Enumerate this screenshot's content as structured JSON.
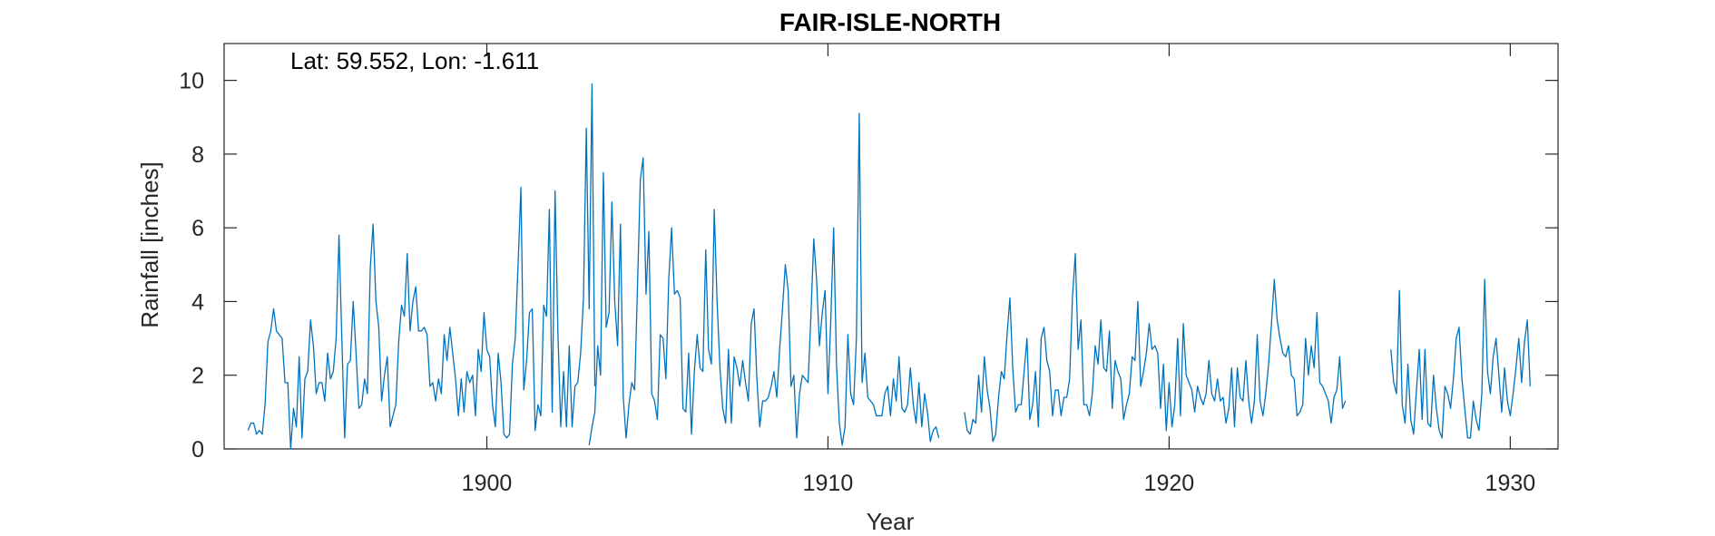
{
  "chart_data": {
    "type": "line",
    "title": "FAIR-ISLE-NORTH",
    "annotation": "Lat: 59.552, Lon: -1.611",
    "xlabel": "Year",
    "ylabel": "Rainfall [inches]",
    "xlim": [
      1892.3,
      1931.4
    ],
    "ylim": [
      0,
      11
    ],
    "xticks": [
      1900,
      1910,
      1920,
      1930
    ],
    "yticks": [
      0,
      2,
      4,
      6,
      8,
      10
    ],
    "grid": false,
    "line_color": "#0072BD",
    "series": [
      {
        "start_year": 1893,
        "values": [
          0.5,
          0.7,
          0.7,
          0.4,
          0.5,
          0.4,
          1.2,
          2.9,
          3.2,
          3.8,
          3.2,
          3.1,
          3.0,
          1.8,
          1.8,
          0.0,
          1.1,
          0.6,
          2.5,
          0.3,
          1.9,
          2.1,
          3.5,
          2.8,
          1.5,
          1.8,
          1.8,
          1.3,
          2.6,
          1.9,
          2.1,
          3.0,
          5.8,
          3.0,
          0.3,
          2.3,
          2.4,
          4.0,
          2.6,
          1.1,
          1.2,
          1.9,
          1.5,
          4.9,
          6.1,
          4.0,
          3.3,
          1.3,
          2.0,
          2.5,
          0.6,
          0.9,
          1.2,
          2.9,
          3.9,
          3.6,
          5.3,
          3.2,
          4.0,
          4.4,
          3.2,
          3.2,
          3.3,
          3.1,
          1.7,
          1.8,
          1.3,
          1.9,
          1.5,
          3.1,
          2.4,
          3.3,
          2.6,
          1.9,
          0.9,
          1.9,
          1.0,
          2.1,
          1.8,
          2.0,
          0.9,
          2.7,
          2.1,
          3.7,
          2.7,
          2.5,
          1.2,
          0.6,
          2.6,
          1.8,
          0.4,
          0.3,
          0.4,
          2.3,
          3.0,
          5.0,
          7.1,
          1.6,
          2.4,
          3.7,
          3.8,
          0.5,
          1.2,
          0.9,
          3.9,
          3.6,
          6.5,
          1.0,
          7.0,
          3.2,
          0.6,
          2.1,
          0.6,
          2.8,
          0.6,
          1.7,
          1.8,
          2.6,
          4.1,
          8.7,
          3.8,
          9.9,
          1.7
        ]
      },
      {
        "start_year": 1903,
        "values": [
          0.1,
          0.6,
          1.0,
          2.8,
          2.0,
          7.5,
          3.3,
          3.7,
          6.7,
          4.0,
          2.8,
          6.1,
          1.4,
          0.3,
          1.2,
          1.8,
          1.6,
          4.4,
          7.3,
          7.9,
          4.2,
          5.9,
          1.5,
          1.3,
          0.8,
          3.1,
          3.0,
          1.9,
          4.6,
          6.0,
          4.2,
          4.3,
          4.1,
          1.1,
          1.0,
          2.6,
          0.4,
          2.1,
          3.1,
          2.2,
          2.1,
          5.4,
          2.7,
          2.3,
          6.5,
          4.0,
          2.2,
          1.1,
          0.7,
          2.7,
          0.7,
          2.5,
          2.2,
          1.7,
          2.4,
          1.8,
          1.3,
          3.4,
          3.8,
          1.9,
          0.6,
          1.3,
          1.3,
          1.4,
          1.7,
          2.1,
          1.4,
          2.7,
          3.8,
          5.0,
          4.3,
          1.7,
          2.0,
          0.3,
          1.5,
          2.0,
          1.9,
          1.8,
          3.6,
          5.7,
          4.6,
          2.8,
          3.7,
          4.3,
          1.5,
          3.5,
          6.0,
          2.3,
          0.7,
          0.1,
          0.6,
          3.1,
          1.5,
          1.2,
          3.0,
          9.1,
          1.8,
          2.6,
          1.4,
          1.3,
          1.2,
          0.9,
          0.9,
          0.9,
          1.5,
          1.7,
          0.9,
          1.9,
          1.3,
          2.5,
          1.1,
          1.0,
          1.2,
          2.2,
          1.2,
          0.7,
          1.8,
          0.6,
          1.5,
          1.0,
          0.2,
          0.5,
          0.6,
          0.3
        ]
      },
      {
        "start_year": 1914,
        "values": [
          1.0,
          0.5,
          0.4,
          0.8,
          0.7,
          2.0,
          1.0,
          2.5,
          1.6,
          1.1,
          0.2,
          0.4,
          1.4,
          2.1,
          1.9,
          3.1,
          4.1,
          2.2,
          1.0,
          1.2,
          1.2,
          2.1,
          3.0,
          0.8,
          1.2,
          2.1,
          0.6,
          3.0,
          3.3,
          2.4,
          2.1,
          0.9,
          1.6,
          1.6,
          0.9,
          1.4,
          1.4,
          1.9,
          4.1,
          5.3,
          2.7,
          3.5,
          1.2,
          1.2,
          0.9,
          1.5,
          2.8,
          2.3,
          3.5,
          2.2,
          2.1,
          3.2,
          1.1,
          2.4,
          2.1,
          1.9,
          0.8,
          1.2,
          1.5,
          2.5,
          2.4,
          4.0,
          1.7,
          2.1,
          2.6,
          3.4,
          2.7,
          2.8,
          2.6,
          1.1,
          2.3,
          0.5,
          1.8,
          0.6,
          1.2,
          3.0,
          0.9,
          3.4,
          2.0,
          1.8,
          1.6,
          1.0,
          1.7,
          1.4,
          1.2,
          1.5,
          2.4,
          1.5,
          1.3,
          1.9,
          1.3,
          1.4,
          0.7,
          1.1,
          2.2,
          0.6,
          2.2,
          1.4,
          1.3,
          2.4,
          1.3,
          0.7,
          1.3,
          3.1,
          1.3,
          0.9,
          1.5,
          2.3,
          3.4,
          4.6,
          3.5,
          3.0,
          2.6,
          2.5,
          2.8,
          2.0,
          1.9,
          0.9,
          1.0,
          1.2,
          3.0,
          2.0,
          2.8,
          2.2,
          3.7,
          1.8,
          1.7,
          1.5,
          1.3,
          0.7,
          1.4,
          1.6,
          2.5,
          1.1,
          1.3
        ]
      },
      {
        "start_year": 1926.5,
        "values": [
          2.7,
          1.8,
          1.5,
          4.3,
          1.2,
          0.7,
          2.3,
          0.8,
          0.4,
          1.6,
          2.7,
          0.8,
          2.7,
          0.7,
          0.6,
          2.0,
          1.1,
          0.5,
          0.3,
          1.7,
          1.5,
          1.1,
          1.9,
          3.0,
          3.3,
          1.9,
          1.1,
          0.3,
          0.3,
          1.3,
          0.8,
          0.5,
          1.5,
          4.6,
          2.1,
          1.5,
          2.5,
          3.0,
          2.0,
          1.0,
          2.2,
          1.3,
          0.9,
          1.5,
          2.2,
          3.0,
          1.8,
          2.9,
          3.5,
          1.7
        ]
      }
    ]
  }
}
